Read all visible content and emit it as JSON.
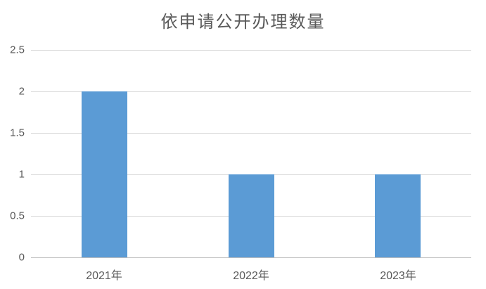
{
  "chart": {
    "colors": {
      "bar": "#5B9BD5",
      "gridline": "#D9D9D9",
      "axis_line": "#BFBFBF",
      "tick_label": "#595959",
      "title": "#595959",
      "background": "#FFFFFF"
    }
  },
  "chart_data": {
    "type": "bar",
    "title": "依申请公开办理数量",
    "categories": [
      "2021年",
      "2022年",
      "2023年"
    ],
    "values": [
      2,
      1,
      1
    ],
    "series": [
      {
        "name": "依申请公开办理数量",
        "values": [
          2,
          1,
          1
        ]
      }
    ],
    "xlabel": "",
    "ylabel": "",
    "ylim": [
      0,
      2.5
    ],
    "ytick_step": 0.5,
    "ytick_labels": [
      "0",
      "0.5",
      "1",
      "1.5",
      "2",
      "2.5"
    ],
    "grid": true,
    "legend_position": "none"
  }
}
